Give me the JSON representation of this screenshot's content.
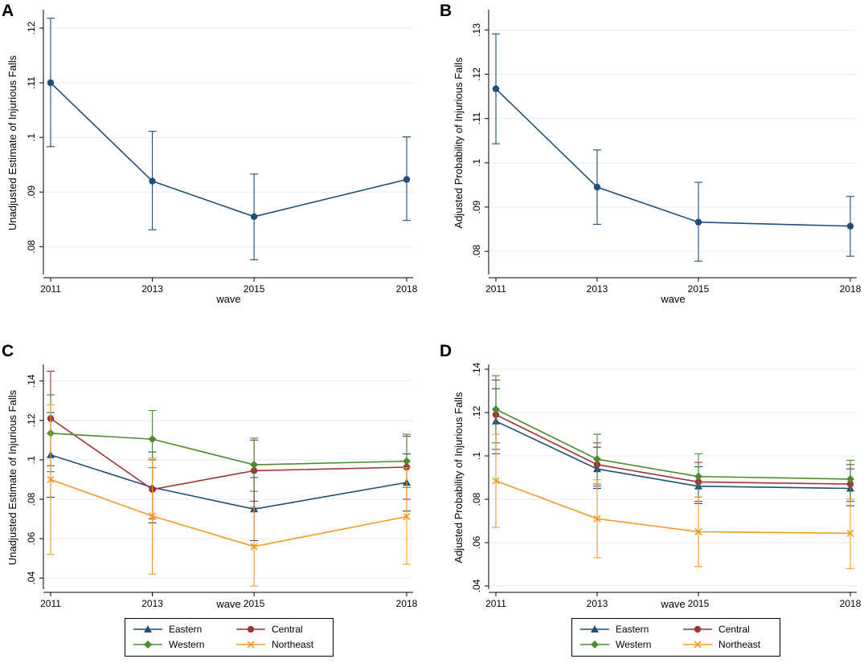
{
  "panels": {
    "A": {
      "letter": "A"
    },
    "B": {
      "letter": "B"
    },
    "C": {
      "letter": "C"
    },
    "D": {
      "letter": "D"
    }
  },
  "colors": {
    "single": "#1f4e79",
    "Eastern": "#1f4e79",
    "Central": "#a33237",
    "Western": "#4e8a2e",
    "Northeast": "#f59a23",
    "grid": "#e3eef3"
  },
  "legend_labels": [
    "Eastern",
    "Central",
    "Western",
    "Northeast"
  ],
  "chart_data": [
    {
      "panel": "A",
      "type": "line",
      "xlabel": "wave",
      "ylabel": "Unadjusted Estimate of Injurious Falls",
      "x": [
        2011,
        2013,
        2015,
        2018
      ],
      "xticks": [
        "2011",
        "2013",
        "2015",
        "2018"
      ],
      "yticks": [
        ".08",
        ".09",
        ".1",
        ".11",
        ".12"
      ],
      "ylim": [
        0.0755,
        0.1225
      ],
      "grid": true,
      "series": [
        {
          "color": "single",
          "marker": "circle",
          "values": [
            0.11,
            0.092,
            0.0855,
            0.0923
          ],
          "lower": [
            0.0983,
            0.0831,
            0.0776,
            0.0848
          ],
          "upper": [
            0.1218,
            0.1011,
            0.0933,
            0.1001
          ]
        }
      ]
    },
    {
      "panel": "B",
      "type": "line",
      "xlabel": "wave",
      "ylabel": "Adjusted Probability of Injurious Falls",
      "x": [
        2011,
        2013,
        2015,
        2018
      ],
      "xticks": [
        "2011",
        "2013",
        "2015",
        "2018"
      ],
      "yticks": [
        ".08",
        ".09",
        ".1",
        ".11",
        ".12",
        ".13"
      ],
      "ylim": [
        0.0755,
        0.1335
      ],
      "grid": true,
      "series": [
        {
          "color": "single",
          "marker": "circle",
          "values": [
            0.1167,
            0.0945,
            0.0866,
            0.0857
          ],
          "lower": [
            0.1043,
            0.0861,
            0.0778,
            0.0789
          ],
          "upper": [
            0.1291,
            0.1029,
            0.0956,
            0.0924
          ]
        }
      ]
    },
    {
      "panel": "C",
      "type": "line",
      "xlabel": "wave",
      "ylabel": "Unadjusted Estimate of Injurious Falls",
      "x": [
        2011,
        2013,
        2015,
        2018
      ],
      "xticks": [
        "2011",
        "2013",
        "2015",
        "2018"
      ],
      "yticks": [
        ".04",
        ".06",
        ".08",
        ".1",
        ".12",
        ".14"
      ],
      "ylim": [
        0.036,
        0.146
      ],
      "grid": true,
      "legend": "bottom",
      "series": [
        {
          "name": "Eastern",
          "color": "Eastern",
          "marker": "triangle",
          "values": [
            0.1025,
            0.086,
            0.075,
            0.0885
          ],
          "lower": [
            0.081,
            0.068,
            0.059,
            0.074
          ],
          "upper": [
            0.124,
            0.104,
            0.091,
            0.103
          ]
        },
        {
          "name": "Central",
          "color": "Central",
          "marker": "circle",
          "values": [
            0.121,
            0.085,
            0.0945,
            0.0963
          ],
          "lower": [
            0.097,
            0.07,
            0.079,
            0.08
          ],
          "upper": [
            0.145,
            0.1,
            0.11,
            0.112
          ]
        },
        {
          "name": "Western",
          "color": "Western",
          "marker": "diamond",
          "values": [
            0.1135,
            0.1105,
            0.0975,
            0.0993
          ],
          "lower": [
            0.094,
            0.096,
            0.084,
            0.086
          ],
          "upper": [
            0.133,
            0.125,
            0.111,
            0.113
          ]
        },
        {
          "name": "Northeast",
          "color": "Northeast",
          "marker": "x",
          "values": [
            0.09,
            0.0715,
            0.056,
            0.0712
          ],
          "lower": [
            0.052,
            0.042,
            0.036,
            0.047
          ],
          "upper": [
            0.128,
            0.101,
            0.076,
            0.096
          ]
        }
      ]
    },
    {
      "panel": "D",
      "type": "line",
      "xlabel": "wave",
      "ylabel": "Adjusted Probability of Injurious Falls",
      "x": [
        2011,
        2013,
        2015,
        2018
      ],
      "xticks": [
        "2011",
        "2013",
        "2015",
        "2018"
      ],
      "yticks": [
        ".04",
        ".06",
        ".08",
        ".1",
        ".12",
        ".14"
      ],
      "ylim": [
        0.04,
        0.14
      ],
      "grid": true,
      "legend": "bottom",
      "series": [
        {
          "name": "Eastern",
          "color": "Eastern",
          "marker": "triangle",
          "values": [
            0.116,
            0.094,
            0.086,
            0.085
          ],
          "lower": [
            0.101,
            0.085,
            0.078,
            0.077
          ],
          "upper": [
            0.131,
            0.104,
            0.095,
            0.094
          ]
        },
        {
          "name": "Central",
          "color": "Central",
          "marker": "circle",
          "values": [
            0.119,
            0.096,
            0.088,
            0.087
          ],
          "lower": [
            0.103,
            0.086,
            0.079,
            0.079
          ],
          "upper": [
            0.135,
            0.106,
            0.097,
            0.096
          ]
        },
        {
          "name": "Western",
          "color": "Western",
          "marker": "diamond",
          "values": [
            0.1215,
            0.0985,
            0.0905,
            0.0893
          ],
          "lower": [
            0.106,
            0.087,
            0.081,
            0.08
          ],
          "upper": [
            0.137,
            0.11,
            0.101,
            0.098
          ]
        },
        {
          "name": "Northeast",
          "color": "Northeast",
          "marker": "x",
          "values": [
            0.0885,
            0.071,
            0.065,
            0.0643
          ],
          "lower": [
            0.067,
            0.053,
            0.049,
            0.048
          ],
          "upper": [
            0.11,
            0.089,
            0.081,
            0.08
          ]
        }
      ]
    }
  ]
}
